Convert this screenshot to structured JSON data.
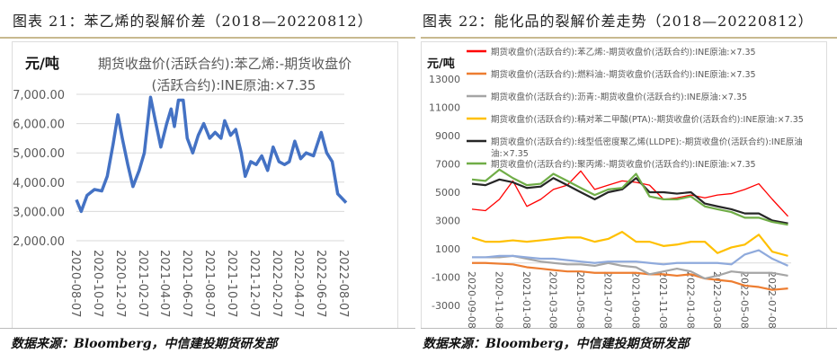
{
  "left": {
    "heading": "图表 21：苯乙烯的裂解价差（2018—20220812）",
    "source": "数据来源：Bloomberg，中信建投期货研发部"
  },
  "right": {
    "heading": "图表 22：能化品的裂解价差走势（2018—20220812）",
    "source": "数据来源：Bloomberg，中信建投期货研发部"
  },
  "chart_data": [
    {
      "type": "line",
      "title_line1": "期货收盘价(活跃合约):苯乙烯:-期货收盘价",
      "title_line2": "(活跃合约):INE原油:×7.35",
      "ylabel": "元/吨",
      "ylim": [
        2000,
        7000
      ],
      "grid": true,
      "yticks": [
        "7,000.00",
        "6,000.00",
        "5,000.00",
        "4,000.00",
        "3,000.00",
        "2,000.00"
      ],
      "xticks": [
        "2020-08-07",
        "2020-10-07",
        "2020-12-07",
        "2021-02-07",
        "2021-04-07",
        "2021-06-07",
        "2021-08-07",
        "2021-10-07",
        "2021-12-07",
        "2022-02-07",
        "2022-04-07",
        "2022-06-07",
        "2022-08-07"
      ],
      "color": "#4472c4",
      "x": [
        "2020-08-07",
        "2020-08-20",
        "2020-09-05",
        "2020-09-25",
        "2020-10-15",
        "2020-10-30",
        "2020-11-15",
        "2020-11-28",
        "2020-12-10",
        "2020-12-25",
        "2021-01-08",
        "2021-01-25",
        "2021-02-08",
        "2021-02-25",
        "2021-03-10",
        "2021-03-25",
        "2021-04-10",
        "2021-04-22",
        "2021-05-01",
        "2021-05-12",
        "2021-05-25",
        "2021-06-05",
        "2021-06-20",
        "2021-07-05",
        "2021-07-20",
        "2021-08-05",
        "2021-08-20",
        "2021-09-05",
        "2021-09-15",
        "2021-10-01",
        "2021-10-15",
        "2021-10-30",
        "2021-11-10",
        "2021-11-25",
        "2021-12-10",
        "2021-12-25",
        "2022-01-10",
        "2022-01-25",
        "2022-02-10",
        "2022-02-25",
        "2022-03-10",
        "2022-03-25",
        "2022-04-10",
        "2022-04-25",
        "2022-05-15",
        "2022-06-05",
        "2022-06-20",
        "2022-07-05",
        "2022-07-20",
        "2022-08-12"
      ],
      "values": [
        3400,
        3000,
        3550,
        3750,
        3700,
        4200,
        5300,
        6300,
        5500,
        4600,
        3850,
        4400,
        5000,
        6900,
        6100,
        5200,
        6000,
        6500,
        5900,
        6800,
        6800,
        5500,
        5000,
        5600,
        6000,
        5500,
        5700,
        5500,
        6100,
        5600,
        5800,
        5000,
        4200,
        4700,
        4600,
        4900,
        4400,
        5200,
        4700,
        4600,
        4700,
        5400,
        4800,
        5000,
        4900,
        5700,
        5000,
        4700,
        3600,
        3300
      ]
    },
    {
      "type": "line",
      "ylabel": "元/吨",
      "ylim": [
        -3000,
        13000
      ],
      "grid": false,
      "yticks": [
        "13000",
        "11000",
        "9000",
        "7000",
        "5000",
        "3000",
        "1000",
        "-1000",
        "-3000"
      ],
      "xticks": [
        "2020-09-08",
        "2020-11-08",
        "2021-01-08",
        "2021-03-08",
        "2021-05-08",
        "2021-07-08",
        "2021-09-08",
        "2021-11-08",
        "2022-01-08",
        "2022-03-08",
        "2022-05-08",
        "2022-07-08"
      ],
      "legend": "top",
      "x": [
        "2020-09-08",
        "2020-10-08",
        "2020-11-08",
        "2020-12-08",
        "2021-01-08",
        "2021-02-08",
        "2021-03-08",
        "2021-04-08",
        "2021-05-08",
        "2021-06-08",
        "2021-07-08",
        "2021-08-08",
        "2021-09-08",
        "2021-10-08",
        "2021-11-08",
        "2021-12-08",
        "2022-01-08",
        "2022-02-08",
        "2022-03-08",
        "2022-04-08",
        "2022-05-08",
        "2022-06-08",
        "2022-07-08",
        "2022-08-12"
      ],
      "series": [
        {
          "name": "期货收盘价(活跃合约):苯乙烯:-期货收盘价(活跃合约):INE原油:×7.35",
          "color": "#ff0000",
          "values": [
            3800,
            3700,
            4500,
            5800,
            4000,
            4500,
            5200,
            5500,
            6500,
            5200,
            5500,
            5800,
            5700,
            5500,
            4500,
            4600,
            4800,
            4600,
            4800,
            4900,
            5200,
            5600,
            4500,
            3300
          ]
        },
        {
          "name": "期货收盘价(活跃合约):燃料油:-期货收盘价(活跃合约):INE原油:×7.35",
          "color": "#ed7d31",
          "values": [
            0,
            0,
            -50,
            -100,
            -300,
            -400,
            -500,
            -600,
            -600,
            -700,
            -700,
            -700,
            -700,
            -800,
            -800,
            -900,
            -800,
            -1100,
            -1200,
            -1300,
            -1600,
            -1700,
            -1900,
            -1800
          ]
        },
        {
          "name": "期货收盘价(活跃合约):沥青:-期货收盘价(活跃合约):INE原油:×7.35",
          "color": "#a5a5a5",
          "values": [
            400,
            400,
            400,
            500,
            300,
            100,
            0,
            -100,
            -100,
            -200,
            0,
            -200,
            -300,
            -800,
            -600,
            -400,
            -600,
            -1100,
            -900,
            -600,
            -700,
            -700,
            -700,
            -900
          ]
        },
        {
          "name": "期货收盘价(活跃合约):精对苯二甲酸(PTA):-期货收盘价(活跃合约):INE原油:×7.35",
          "color": "#ffc000",
          "values": [
            1800,
            1500,
            1500,
            1600,
            1500,
            1600,
            1700,
            1800,
            1800,
            1500,
            1700,
            2200,
            1500,
            1500,
            1200,
            1300,
            1500,
            1500,
            700,
            1100,
            1300,
            2000,
            800,
            500
          ]
        },
        {
          "name": "期货收盘价(活跃合约):线型低密度聚乙烯(LLDPE):-期货收盘价(活跃合约):INE原油:×7.35",
          "color": "#262626",
          "values": [
            5600,
            5500,
            5900,
            5700,
            5300,
            5400,
            6000,
            5500,
            5000,
            4500,
            5000,
            5200,
            6000,
            5000,
            5000,
            4900,
            5000,
            4200,
            4000,
            3800,
            3500,
            3500,
            3000,
            2800
          ]
        },
        {
          "name": "期货收盘价(活跃合约):聚丙烯:-期货收盘价(活跃合约):INE原油:×7.35",
          "color": "#70ad47",
          "values": [
            5900,
            5800,
            6600,
            6000,
            5500,
            5600,
            6300,
            5800,
            5300,
            4800,
            5200,
            5300,
            6300,
            4700,
            4500,
            4500,
            4700,
            4000,
            3800,
            3600,
            3200,
            3200,
            2900,
            2700
          ]
        },
        {
          "color": "#8faadc",
          "values": [
            400,
            400,
            500,
            500,
            400,
            300,
            300,
            200,
            100,
            0,
            100,
            100,
            100,
            0,
            -100,
            0,
            0,
            0,
            0,
            -100,
            600,
            900,
            300,
            -200
          ]
        }
      ]
    }
  ]
}
